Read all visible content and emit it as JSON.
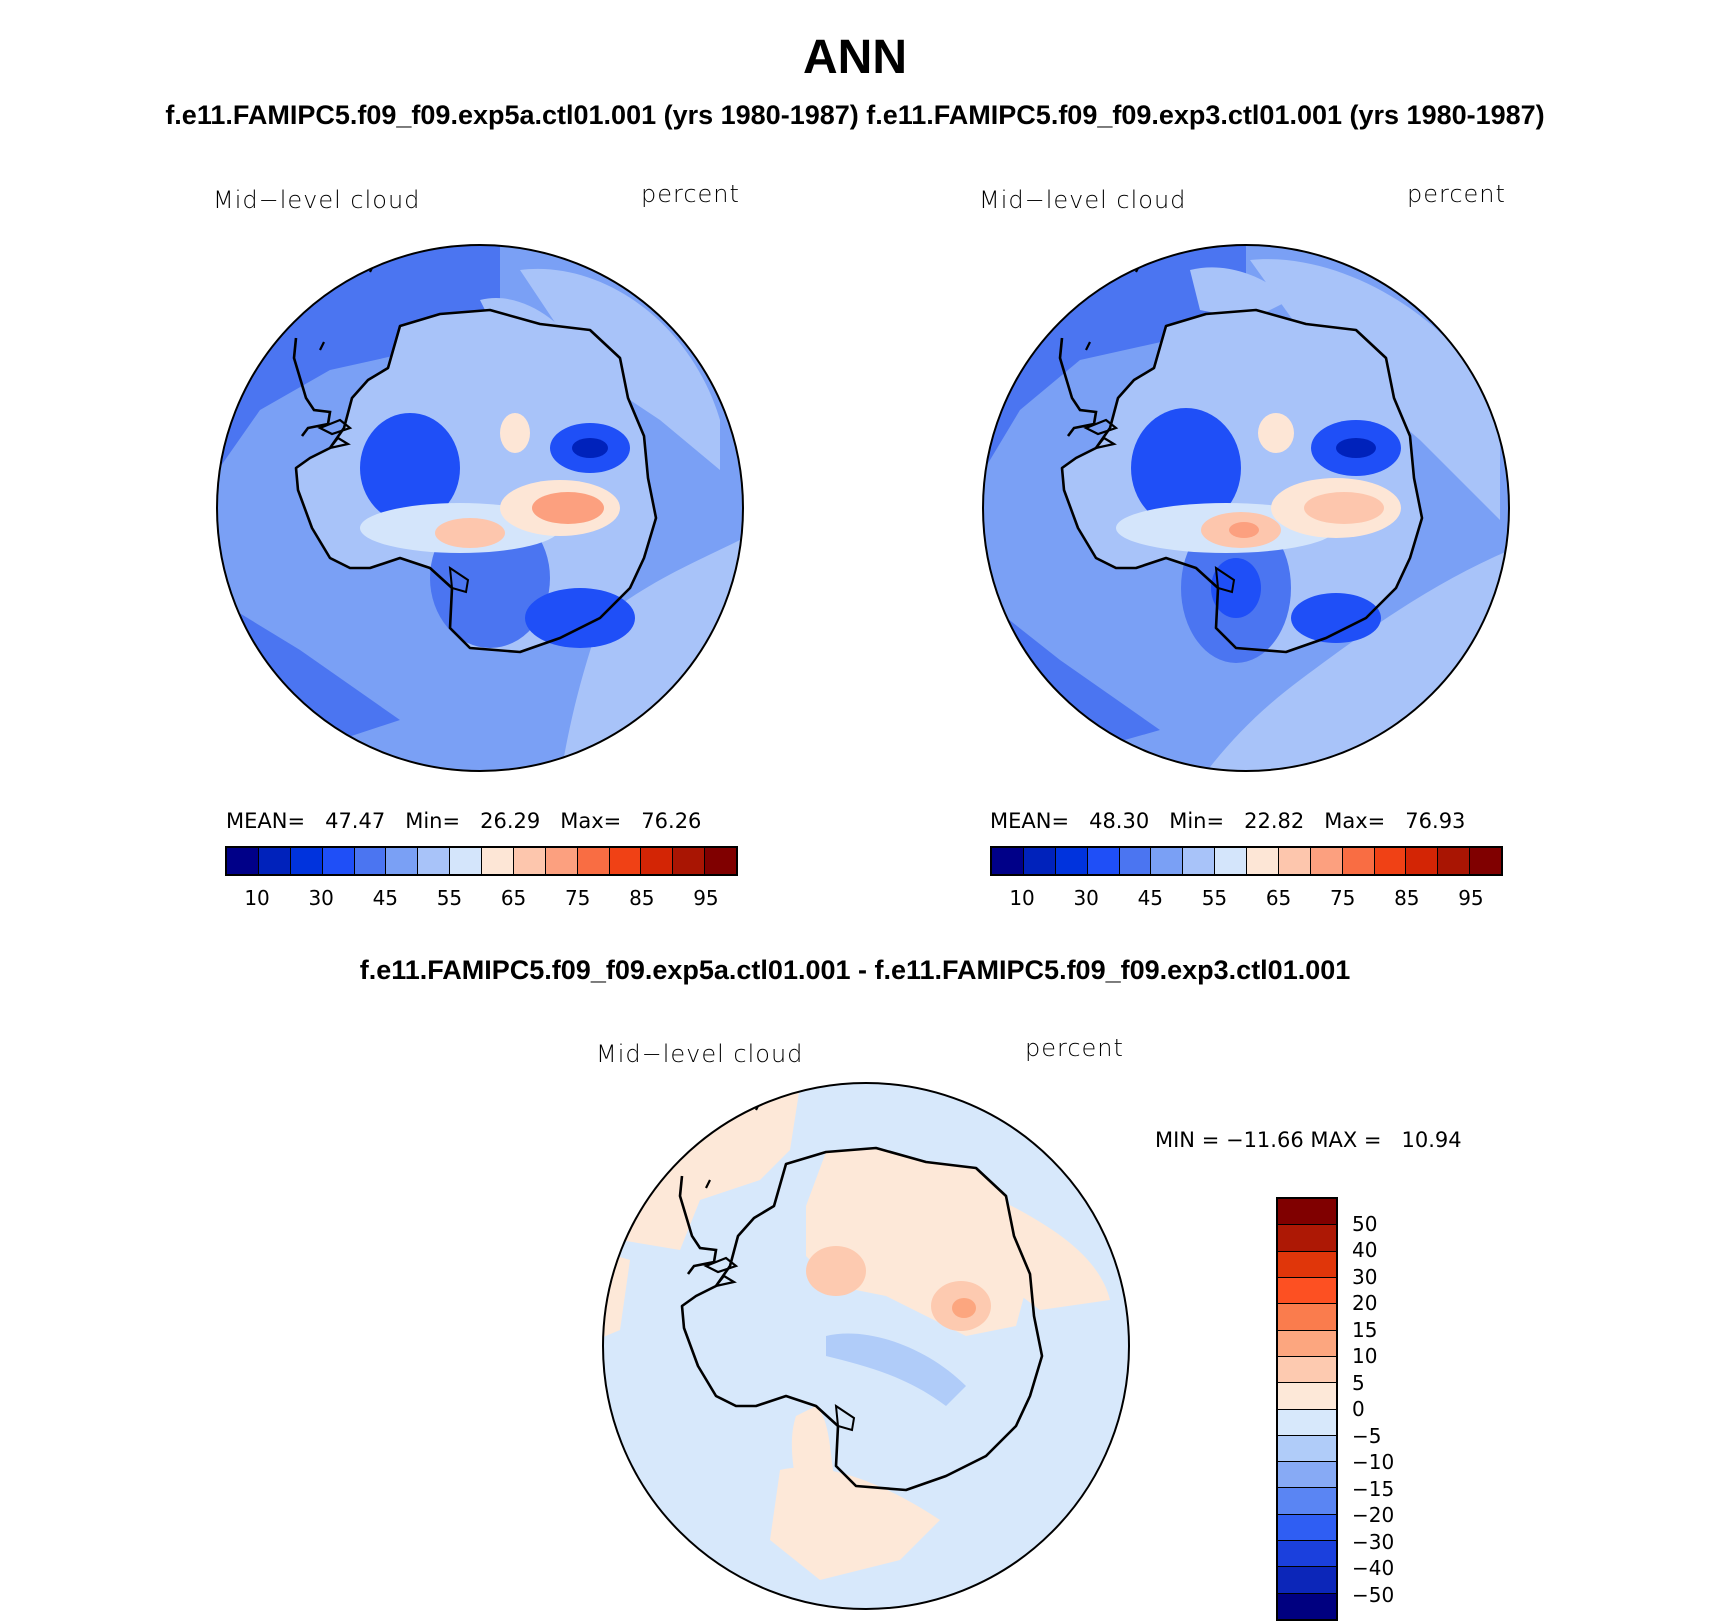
{
  "title": "ANN",
  "subtitle_top": "f.e11.FAMIPC5.f09_f09.exp5a.ctl01.001 (yrs 1980-1987)   f.e11.FAMIPC5.f09_f09.exp3.ctl01.001 (yrs 1980-1987)",
  "subtitle_diff": "f.e11.FAMIPC5.f09_f09.exp5a.ctl01.001 - f.e11.FAMIPC5.f09_f09.exp3.ctl01.001",
  "panels": {
    "left": {
      "variable": "Mid−level cloud",
      "units": "percent",
      "stats": "MEAN=   47.47   Min=   26.29   Max=   76.26"
    },
    "right": {
      "variable": "Mid−level cloud",
      "units": "percent",
      "stats": "MEAN=   48.30   Min=   22.82   Max=   76.93"
    },
    "diff": {
      "variable": "Mid−level cloud",
      "units": "percent",
      "stats": "MIN = −11.66 MAX =   10.94"
    }
  },
  "colorbar_abs": {
    "colors": [
      "#000088",
      "#0022bb",
      "#0033dd",
      "#1f4ff7",
      "#4b75f1",
      "#7aa0f5",
      "#a8c3f9",
      "#d4e5fb",
      "#fde6d6",
      "#fdc6ad",
      "#fca07f",
      "#f96d43",
      "#f04115",
      "#d32505",
      "#a91503",
      "#800000"
    ],
    "tick_labels": [
      "10",
      "30",
      "45",
      "55",
      "65",
      "75",
      "85",
      "95"
    ]
  },
  "colorbar_diff": {
    "colors": [
      "#800000",
      "#ad1805",
      "#e0360a",
      "#fd5022",
      "#fa7c4d",
      "#fca67f",
      "#fdcab0",
      "#fde8d8",
      "#d7e8fb",
      "#b0ccf9",
      "#87aaf5",
      "#5a85f3",
      "#2f5ef3",
      "#1b40dd",
      "#0c26b9",
      "#000080"
    ],
    "tick_labels": [
      "50",
      "40",
      "30",
      "20",
      "15",
      "10",
      "5",
      "0",
      "−5",
      "−10",
      "−15",
      "−20",
      "−30",
      "−40",
      "−50"
    ]
  }
}
